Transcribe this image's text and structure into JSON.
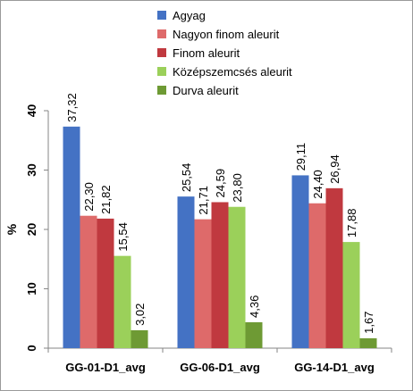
{
  "chart_data": {
    "type": "bar",
    "title": "",
    "xlabel": "",
    "ylabel": "%",
    "ylim": [
      0,
      40
    ],
    "yticks": [
      0,
      10,
      20,
      30,
      40
    ],
    "grid": false,
    "legend_position": "top-right",
    "categories": [
      "GG-01-D1_avg",
      "GG-06-D1_avg",
      "GG-14-D1_avg"
    ],
    "series": [
      {
        "name": "Agyag",
        "color": "#4472c4",
        "values": [
          37.32,
          25.54,
          29.11
        ],
        "labels": [
          "37,32",
          "25,54",
          "29,11"
        ]
      },
      {
        "name": "Nagyon finom aleurit",
        "color": "#de6a6a",
        "values": [
          22.3,
          21.71,
          24.4
        ],
        "labels": [
          "22,30",
          "21,71",
          "24,40"
        ]
      },
      {
        "name": "Finom aleurit",
        "color": "#c0393f",
        "values": [
          21.82,
          24.59,
          26.94
        ],
        "labels": [
          "21,82",
          "24,59",
          "26,94"
        ]
      },
      {
        "name": "Középszemcsés aleurit",
        "color": "#9bd05a",
        "values": [
          15.54,
          23.8,
          17.88
        ],
        "labels": [
          "15,54",
          "23,80",
          "17,88"
        ]
      },
      {
        "name": "Durva aleurit",
        "color": "#6e9a34",
        "values": [
          3.02,
          4.36,
          1.67
        ],
        "labels": [
          "3,02",
          "4,36",
          "1,67"
        ]
      }
    ]
  }
}
